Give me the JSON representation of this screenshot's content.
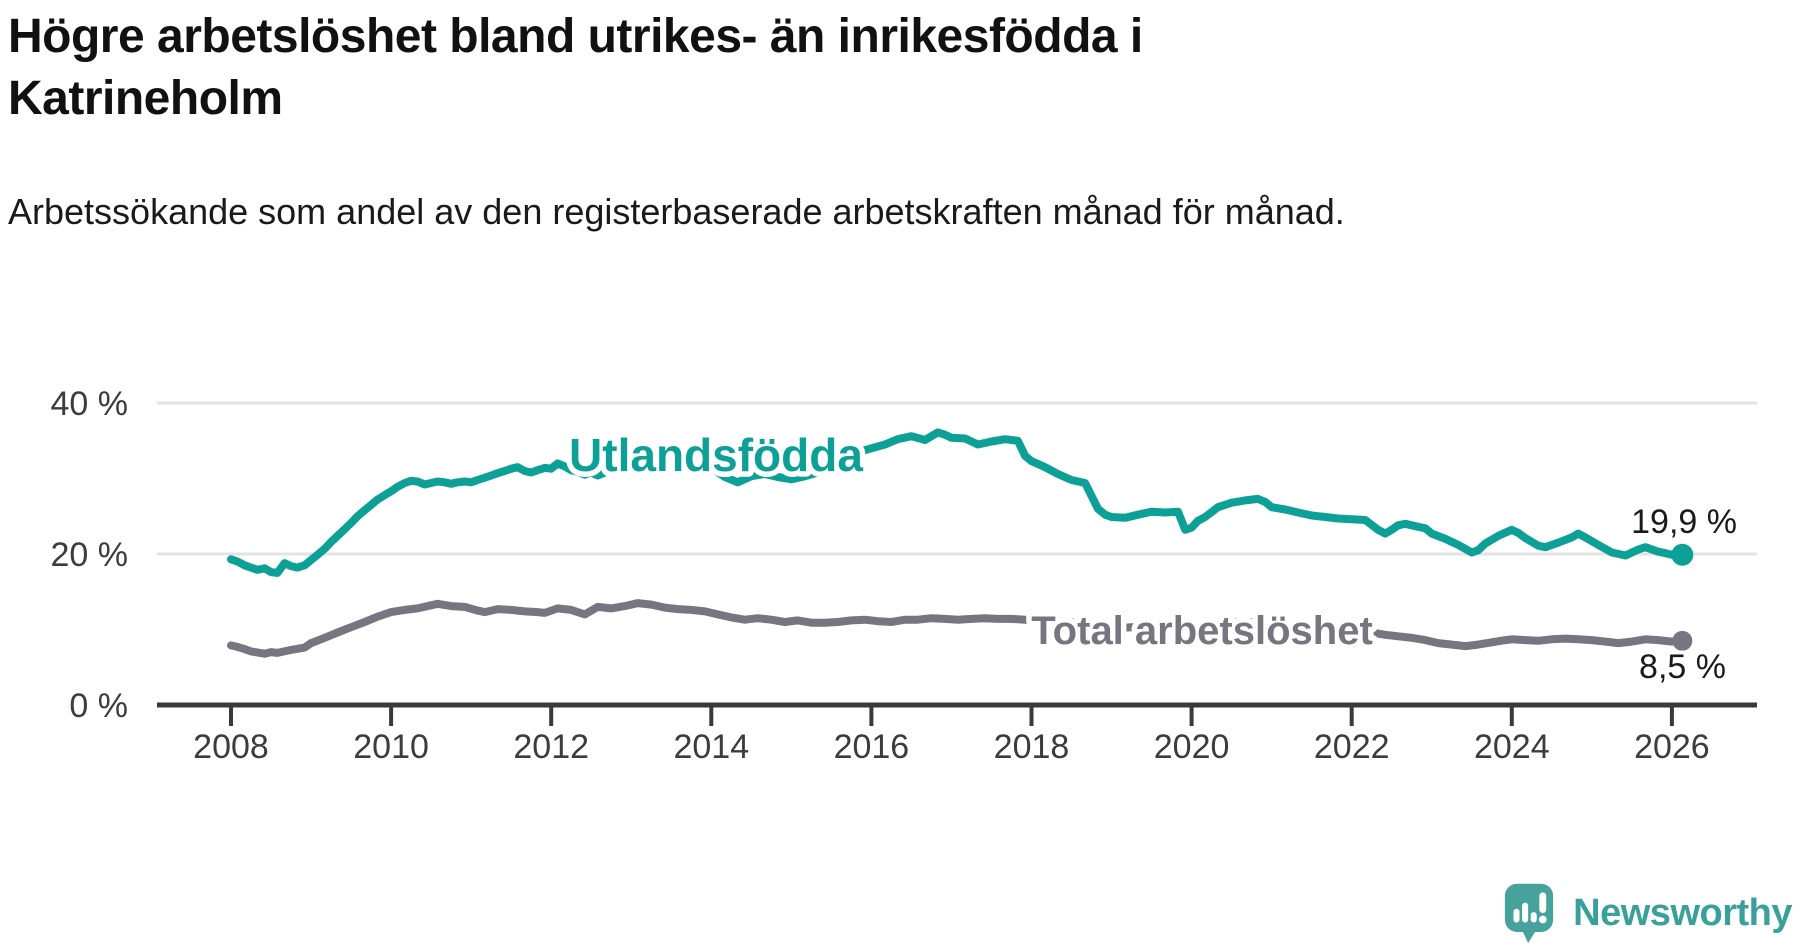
{
  "header": {
    "title": "Högre arbetslöshet bland utrikes- än inrikesfödda i Katrineholm",
    "subtitle": "Arbetssökande som andel av den registerbaserade arbetskraften månad för månad."
  },
  "chart_data": {
    "type": "line",
    "title": "Högre arbetslöshet bland utrikes- än inrikesfödda i Katrineholm",
    "subtitle": "Arbetssökande som andel av den registerbaserade arbetskraften månad för månad.",
    "unit": "%",
    "grid": "horizontal",
    "legend": "inline-labels",
    "x_axis": {
      "ticks": [
        2008,
        2010,
        2012,
        2014,
        2016,
        2018,
        2020,
        2022,
        2024,
        2026
      ],
      "range": [
        2007.1,
        2027.1
      ]
    },
    "y_axis": {
      "tick_values": [
        0,
        20,
        40
      ],
      "tick_labels": [
        "0 %",
        "20 %",
        "40 %"
      ],
      "range": [
        0,
        45
      ]
    },
    "series": [
      {
        "name": "Utlandsfödda",
        "color": "#0da096",
        "end_label": "19,9 %",
        "end_value": 19.9,
        "points": [
          [
            2008.0,
            19.3
          ],
          [
            2008.08,
            19.0
          ],
          [
            2008.17,
            18.5
          ],
          [
            2008.25,
            18.2
          ],
          [
            2008.33,
            17.9
          ],
          [
            2008.42,
            18.1
          ],
          [
            2008.5,
            17.6
          ],
          [
            2008.58,
            17.5
          ],
          [
            2008.67,
            18.8
          ],
          [
            2008.75,
            18.4
          ],
          [
            2008.83,
            18.2
          ],
          [
            2008.92,
            18.5
          ],
          [
            2009.0,
            19.2
          ],
          [
            2009.08,
            19.9
          ],
          [
            2009.17,
            20.7
          ],
          [
            2009.25,
            21.6
          ],
          [
            2009.33,
            22.4
          ],
          [
            2009.42,
            23.3
          ],
          [
            2009.5,
            24.1
          ],
          [
            2009.58,
            25.0
          ],
          [
            2009.67,
            25.8
          ],
          [
            2009.75,
            26.5
          ],
          [
            2009.83,
            27.2
          ],
          [
            2009.92,
            27.8
          ],
          [
            2010.0,
            28.3
          ],
          [
            2010.08,
            28.9
          ],
          [
            2010.17,
            29.4
          ],
          [
            2010.25,
            29.7
          ],
          [
            2010.33,
            29.6
          ],
          [
            2010.42,
            29.2
          ],
          [
            2010.5,
            29.4
          ],
          [
            2010.58,
            29.6
          ],
          [
            2010.67,
            29.5
          ],
          [
            2010.75,
            29.3
          ],
          [
            2010.83,
            29.5
          ],
          [
            2010.92,
            29.6
          ],
          [
            2011.0,
            29.5
          ],
          [
            2011.08,
            29.8
          ],
          [
            2011.17,
            30.1
          ],
          [
            2011.25,
            30.4
          ],
          [
            2011.33,
            30.7
          ],
          [
            2011.42,
            31.0
          ],
          [
            2011.5,
            31.3
          ],
          [
            2011.58,
            31.5
          ],
          [
            2011.67,
            31.0
          ],
          [
            2011.75,
            30.8
          ],
          [
            2011.83,
            31.1
          ],
          [
            2011.92,
            31.4
          ],
          [
            2012.0,
            31.3
          ],
          [
            2012.08,
            32.0
          ],
          [
            2012.17,
            31.6
          ],
          [
            2012.25,
            31.1
          ],
          [
            2012.33,
            30.9
          ],
          [
            2012.42,
            30.5
          ],
          [
            2012.5,
            30.8
          ],
          [
            2012.58,
            30.4
          ],
          [
            2012.67,
            30.8
          ],
          [
            2012.75,
            31.1
          ],
          [
            2012.83,
            31.3
          ],
          [
            2012.92,
            31.5
          ],
          [
            2013.0,
            31.7
          ],
          [
            2013.17,
            32.2
          ],
          [
            2013.33,
            32.0
          ],
          [
            2013.5,
            31.8
          ],
          [
            2013.67,
            31.6
          ],
          [
            2013.83,
            31.9
          ],
          [
            2014.0,
            31.4
          ],
          [
            2014.17,
            30.2
          ],
          [
            2014.33,
            29.5
          ],
          [
            2014.5,
            30.3
          ],
          [
            2014.67,
            30.6
          ],
          [
            2014.83,
            30.2
          ],
          [
            2015.0,
            29.9
          ],
          [
            2015.17,
            30.3
          ],
          [
            2015.33,
            30.8
          ],
          [
            2015.5,
            31.6
          ],
          [
            2015.67,
            32.6
          ],
          [
            2015.83,
            33.5
          ],
          [
            2016.0,
            34.0
          ],
          [
            2016.17,
            34.5
          ],
          [
            2016.33,
            35.2
          ],
          [
            2016.5,
            35.6
          ],
          [
            2016.67,
            35.1
          ],
          [
            2016.83,
            36.1
          ],
          [
            2016.92,
            35.8
          ],
          [
            2017.0,
            35.4
          ],
          [
            2017.17,
            35.3
          ],
          [
            2017.33,
            34.5
          ],
          [
            2017.5,
            34.9
          ],
          [
            2017.67,
            35.2
          ],
          [
            2017.83,
            35.0
          ],
          [
            2017.92,
            33.0
          ],
          [
            2018.0,
            32.3
          ],
          [
            2018.17,
            31.5
          ],
          [
            2018.33,
            30.6
          ],
          [
            2018.5,
            29.8
          ],
          [
            2018.67,
            29.4
          ],
          [
            2018.83,
            26.0
          ],
          [
            2018.92,
            25.2
          ],
          [
            2019.0,
            24.9
          ],
          [
            2019.17,
            24.8
          ],
          [
            2019.33,
            25.2
          ],
          [
            2019.5,
            25.6
          ],
          [
            2019.67,
            25.5
          ],
          [
            2019.83,
            25.6
          ],
          [
            2019.92,
            23.2
          ],
          [
            2020.0,
            23.5
          ],
          [
            2020.08,
            24.4
          ],
          [
            2020.17,
            24.9
          ],
          [
            2020.33,
            26.2
          ],
          [
            2020.5,
            26.8
          ],
          [
            2020.67,
            27.1
          ],
          [
            2020.83,
            27.3
          ],
          [
            2020.92,
            26.9
          ],
          [
            2021.0,
            26.2
          ],
          [
            2021.17,
            25.9
          ],
          [
            2021.33,
            25.5
          ],
          [
            2021.5,
            25.1
          ],
          [
            2021.67,
            24.9
          ],
          [
            2021.83,
            24.7
          ],
          [
            2022.0,
            24.6
          ],
          [
            2022.17,
            24.5
          ],
          [
            2022.33,
            23.2
          ],
          [
            2022.42,
            22.7
          ],
          [
            2022.5,
            23.2
          ],
          [
            2022.58,
            23.8
          ],
          [
            2022.67,
            24.0
          ],
          [
            2022.83,
            23.6
          ],
          [
            2022.92,
            23.4
          ],
          [
            2023.0,
            22.7
          ],
          [
            2023.17,
            22.0
          ],
          [
            2023.33,
            21.2
          ],
          [
            2023.5,
            20.2
          ],
          [
            2023.58,
            20.5
          ],
          [
            2023.67,
            21.4
          ],
          [
            2023.83,
            22.4
          ],
          [
            2024.0,
            23.2
          ],
          [
            2024.08,
            22.8
          ],
          [
            2024.17,
            22.1
          ],
          [
            2024.33,
            21.1
          ],
          [
            2024.42,
            20.9
          ],
          [
            2024.58,
            21.5
          ],
          [
            2024.75,
            22.2
          ],
          [
            2024.83,
            22.7
          ],
          [
            2024.92,
            22.2
          ],
          [
            2025.08,
            21.2
          ],
          [
            2025.25,
            20.2
          ],
          [
            2025.42,
            19.8
          ],
          [
            2025.58,
            20.6
          ],
          [
            2025.67,
            20.9
          ],
          [
            2025.83,
            20.3
          ],
          [
            2025.92,
            20.1
          ],
          [
            2026.0,
            19.9
          ],
          [
            2026.13,
            19.9
          ]
        ]
      },
      {
        "name": "Total arbetslöshet",
        "color": "#77757f",
        "end_label": "8,5 %",
        "end_value": 8.5,
        "points": [
          [
            2008.0,
            7.9
          ],
          [
            2008.08,
            7.7
          ],
          [
            2008.17,
            7.4
          ],
          [
            2008.25,
            7.1
          ],
          [
            2008.42,
            6.8
          ],
          [
            2008.5,
            7.0
          ],
          [
            2008.58,
            6.9
          ],
          [
            2008.75,
            7.3
          ],
          [
            2008.92,
            7.6
          ],
          [
            2009.0,
            8.2
          ],
          [
            2009.17,
            8.9
          ],
          [
            2009.33,
            9.6
          ],
          [
            2009.5,
            10.3
          ],
          [
            2009.67,
            11.0
          ],
          [
            2009.83,
            11.7
          ],
          [
            2010.0,
            12.3
          ],
          [
            2010.17,
            12.6
          ],
          [
            2010.33,
            12.8
          ],
          [
            2010.5,
            13.2
          ],
          [
            2010.58,
            13.4
          ],
          [
            2010.75,
            13.1
          ],
          [
            2010.92,
            13.0
          ],
          [
            2011.08,
            12.5
          ],
          [
            2011.17,
            12.3
          ],
          [
            2011.33,
            12.7
          ],
          [
            2011.5,
            12.6
          ],
          [
            2011.67,
            12.4
          ],
          [
            2011.83,
            12.3
          ],
          [
            2011.92,
            12.2
          ],
          [
            2012.08,
            12.8
          ],
          [
            2012.25,
            12.6
          ],
          [
            2012.42,
            12.0
          ],
          [
            2012.58,
            13.0
          ],
          [
            2012.75,
            12.8
          ],
          [
            2012.92,
            13.1
          ],
          [
            2013.08,
            13.5
          ],
          [
            2013.25,
            13.3
          ],
          [
            2013.42,
            12.9
          ],
          [
            2013.58,
            12.7
          ],
          [
            2013.75,
            12.6
          ],
          [
            2013.92,
            12.4
          ],
          [
            2014.08,
            12.0
          ],
          [
            2014.25,
            11.6
          ],
          [
            2014.42,
            11.3
          ],
          [
            2014.58,
            11.5
          ],
          [
            2014.75,
            11.3
          ],
          [
            2014.92,
            11.0
          ],
          [
            2015.08,
            11.2
          ],
          [
            2015.25,
            10.9
          ],
          [
            2015.42,
            10.9
          ],
          [
            2015.58,
            11.0
          ],
          [
            2015.75,
            11.2
          ],
          [
            2015.92,
            11.3
          ],
          [
            2016.08,
            11.1
          ],
          [
            2016.25,
            11.0
          ],
          [
            2016.42,
            11.3
          ],
          [
            2016.58,
            11.3
          ],
          [
            2016.75,
            11.5
          ],
          [
            2016.92,
            11.4
          ],
          [
            2017.08,
            11.3
          ],
          [
            2017.25,
            11.4
          ],
          [
            2017.42,
            11.5
          ],
          [
            2017.58,
            11.4
          ],
          [
            2017.75,
            11.4
          ],
          [
            2017.92,
            11.3
          ],
          [
            2018.08,
            11.2
          ],
          [
            2018.25,
            11.1
          ],
          [
            2018.42,
            11.0
          ],
          [
            2018.58,
            10.9
          ],
          [
            2018.75,
            10.7
          ],
          [
            2018.92,
            10.4
          ],
          [
            2019.08,
            10.2
          ],
          [
            2019.25,
            10.3
          ],
          [
            2019.42,
            10.4
          ],
          [
            2019.58,
            10.2
          ],
          [
            2019.75,
            10.0
          ],
          [
            2019.92,
            10.0
          ],
          [
            2020.08,
            10.2
          ],
          [
            2020.25,
            10.5
          ],
          [
            2020.42,
            10.8
          ],
          [
            2020.58,
            11.0
          ],
          [
            2020.75,
            11.0
          ],
          [
            2020.92,
            10.8
          ],
          [
            2021.08,
            10.6
          ],
          [
            2021.25,
            10.5
          ],
          [
            2021.42,
            10.4
          ],
          [
            2021.58,
            10.3
          ],
          [
            2021.75,
            10.2
          ],
          [
            2021.92,
            10.1
          ],
          [
            2022.08,
            9.9
          ],
          [
            2022.25,
            9.6
          ],
          [
            2022.42,
            9.3
          ],
          [
            2022.58,
            9.1
          ],
          [
            2022.75,
            8.9
          ],
          [
            2022.92,
            8.6
          ],
          [
            2023.08,
            8.2
          ],
          [
            2023.25,
            8.0
          ],
          [
            2023.42,
            7.8
          ],
          [
            2023.58,
            8.0
          ],
          [
            2023.75,
            8.3
          ],
          [
            2023.92,
            8.6
          ],
          [
            2024.0,
            8.7
          ],
          [
            2024.17,
            8.6
          ],
          [
            2024.33,
            8.5
          ],
          [
            2024.5,
            8.7
          ],
          [
            2024.67,
            8.8
          ],
          [
            2024.83,
            8.7
          ],
          [
            2025.0,
            8.6
          ],
          [
            2025.17,
            8.4
          ],
          [
            2025.33,
            8.2
          ],
          [
            2025.5,
            8.4
          ],
          [
            2025.67,
            8.7
          ],
          [
            2025.83,
            8.6
          ],
          [
            2026.0,
            8.4
          ],
          [
            2026.13,
            8.5
          ]
        ]
      }
    ]
  },
  "footer": {
    "brand": "Newsworthy",
    "logo_icon": "speech-bubble-bar-chart"
  },
  "colors": {
    "accent_teal": "#0da096",
    "series_gray": "#77757f",
    "grid": "#e3e3e3",
    "axis": "#3a3a3a",
    "tick_text": "#3c3c3c",
    "title_text": "#111111",
    "end_label_text": "#1a1a1a",
    "logo_teal": "#47a29c",
    "logo_text_teal": "#3aa19a"
  }
}
